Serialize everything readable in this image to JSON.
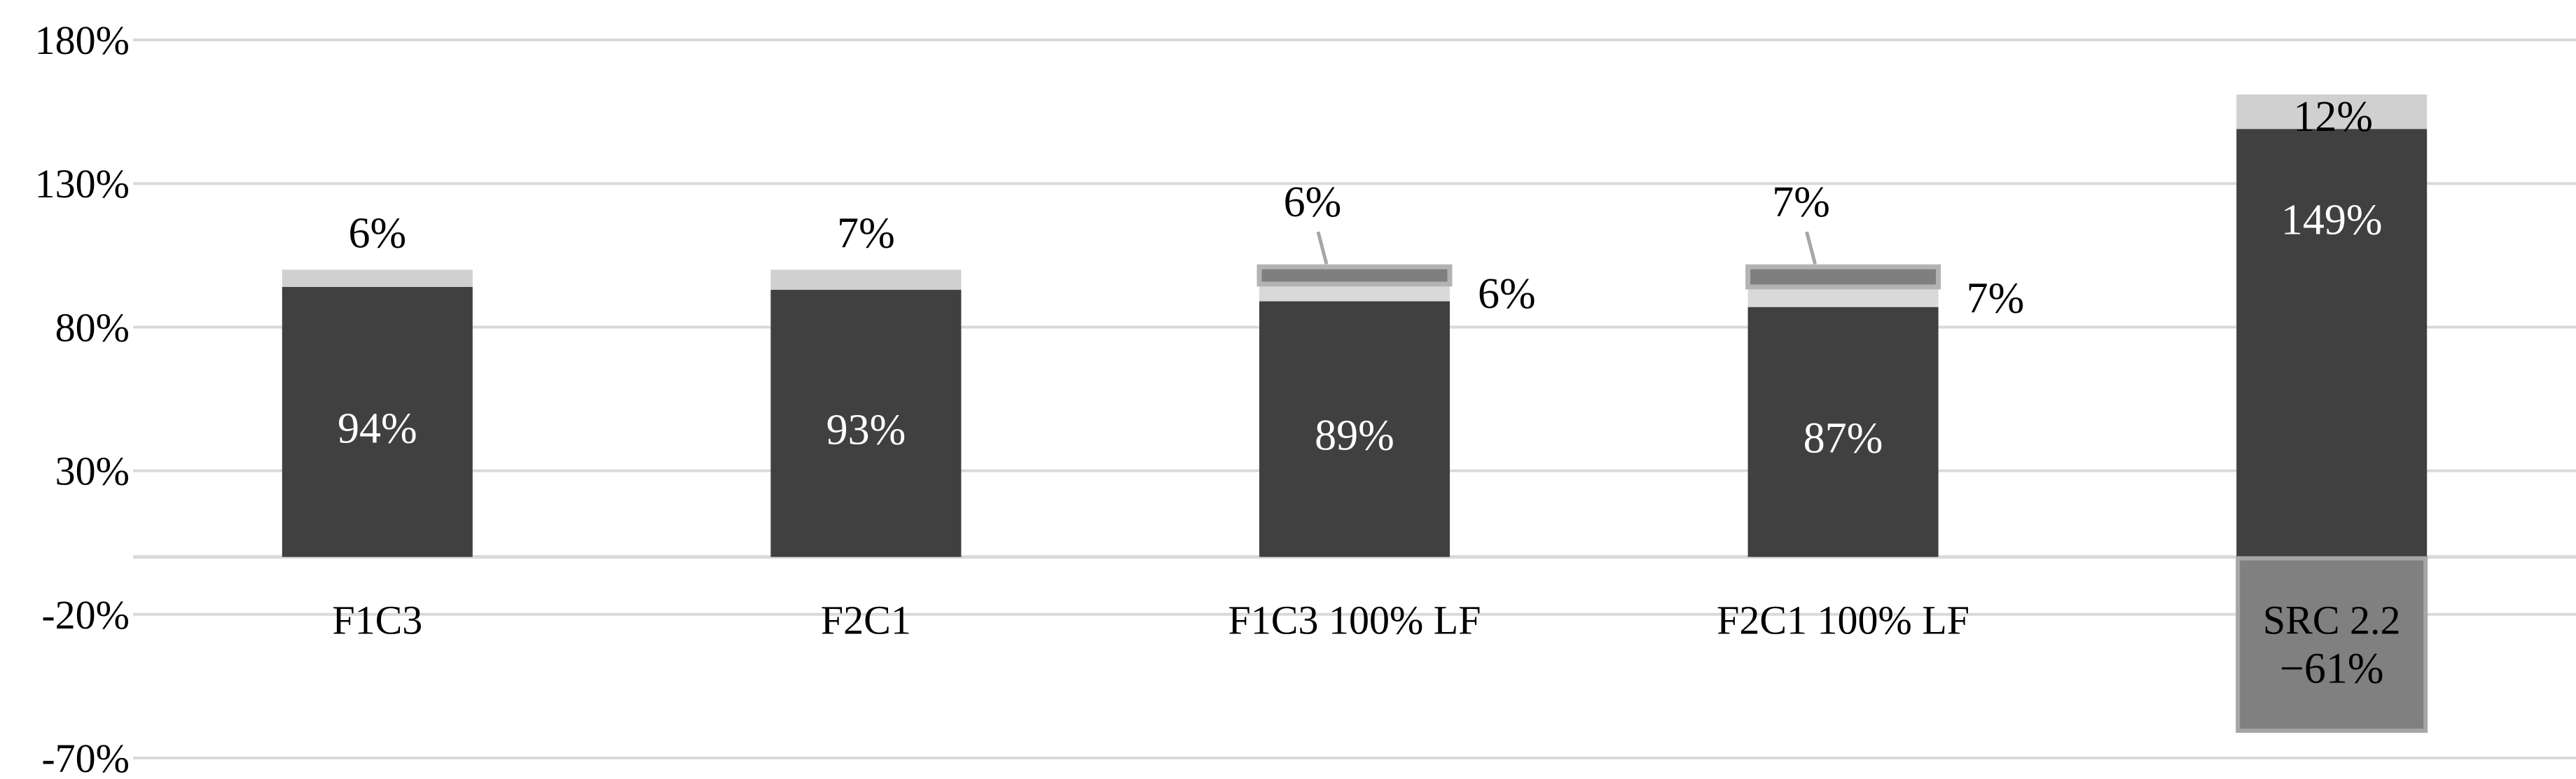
{
  "chart_data": {
    "type": "bar",
    "stacked": true,
    "title": "",
    "xlabel": "",
    "ylabel": "",
    "ylim": [
      -70,
      180
    ],
    "yticks": [
      -70,
      -20,
      30,
      80,
      130,
      180
    ],
    "ytick_labels": [
      "-70%",
      "-20%",
      "30%",
      "80%",
      "130%",
      "180%"
    ],
    "grid": true,
    "legend": "none",
    "categories": [
      "F1C3",
      "F2C1",
      "F1C3 100% LF",
      "F2C1 100% LF",
      "SRC 2.2"
    ],
    "series": [
      {
        "values": [
          94,
          93,
          89,
          87,
          149
        ],
        "labels": [
          "94%",
          "93%",
          "89%",
          "87%",
          "149%"
        ],
        "color": "#404040"
      },
      {
        "values": [
          0,
          0,
          6,
          7,
          0
        ],
        "labels": [
          "",
          "",
          "6%",
          "7%",
          ""
        ],
        "color": "#d9d9d9"
      },
      {
        "values": [
          6,
          7,
          6,
          7,
          12
        ],
        "labels": [
          "6%",
          "7%",
          "6%",
          "7%",
          "12%"
        ],
        "color_light": "#d0d0d0",
        "color_dark": "#7f7f7f"
      },
      {
        "values": [
          0,
          0,
          0,
          0,
          -61
        ],
        "labels": [
          "",
          "",
          "",
          "",
          "−61%"
        ],
        "color": "#808080"
      }
    ]
  }
}
